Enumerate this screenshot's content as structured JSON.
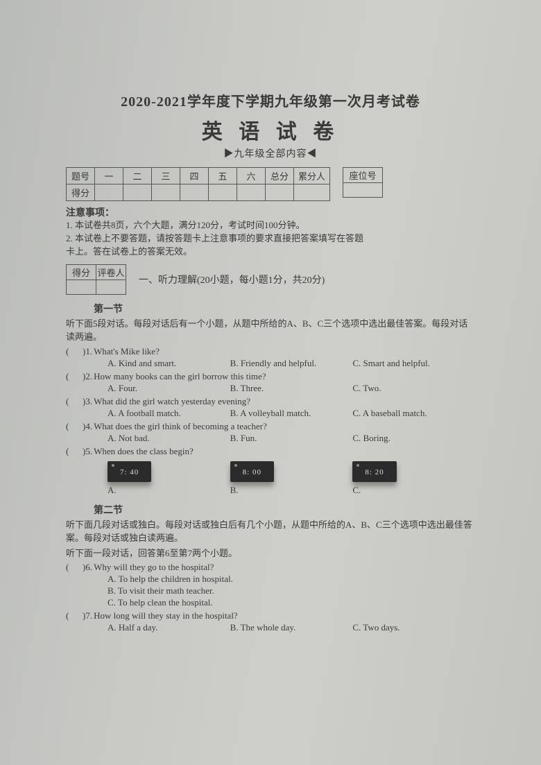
{
  "header": {
    "title_main": "2020-2021学年度下学期九年级第一次月考试卷",
    "title_sub": "英 语 试 卷",
    "scope": "▶九年级全部内容◀"
  },
  "score_table": {
    "row1": [
      "题号",
      "一",
      "二",
      "三",
      "四",
      "五",
      "六",
      "总分",
      "累分人"
    ],
    "row2_label": "得分"
  },
  "seat_table": {
    "label": "座位号"
  },
  "notice": {
    "head": "注意事项：",
    "l1": "1. 本试卷共8页，六个大题，满分120分，考试时间100分钟。",
    "l2": "2. 本试卷上不要答题，请按答题卡上注意事项的要求直接把答案填写在答题",
    "l3": "   卡上。答在试卷上的答案无效。"
  },
  "mini_table": {
    "c1": "得分",
    "c2": "评卷人"
  },
  "section1": {
    "title": "一、听力理解(20小题，每小题1分，共20分)",
    "sub1": "第一节",
    "sub1_instr": "听下面5段对话。每段对话后有一个小题，从题中所给的A、B、C三个选项中选出最佳答案。每段对话读两遍。",
    "q1": {
      "n": ")1.",
      "t": "What's Mike like?",
      "a": "A. Kind and smart.",
      "b": "B. Friendly and helpful.",
      "c": "C. Smart and helpful."
    },
    "q2": {
      "n": ")2.",
      "t": "How many books can the girl borrow this time?",
      "a": "A. Four.",
      "b": "B. Three.",
      "c": "C. Two."
    },
    "q3": {
      "n": ")3.",
      "t": "What did the girl watch yesterday evening?",
      "a": "A. A football match.",
      "b": "B. A volleyball match.",
      "c": "C. A baseball match."
    },
    "q4": {
      "n": ")4.",
      "t": "What does the girl think of becoming a teacher?",
      "a": "A. Not bad.",
      "b": "B. Fun.",
      "c": "C. Boring."
    },
    "q5": {
      "n": ")5.",
      "t": "When does the class begin?",
      "clock_a": "7: 40",
      "clock_b": "8: 00",
      "clock_c": "8: 20",
      "la": "A.",
      "lb": "B.",
      "lc": "C."
    },
    "sub2": "第二节",
    "sub2_instr1": "听下面几段对话或独白。每段对话或独白后有几个小题，从题中所给的A、B、C三个选项中选出最佳答案。每段对话或独白读两遍。",
    "sub2_instr2": "听下面一段对话，回答第6至第7两个小题。",
    "q6": {
      "n": ")6.",
      "t": "Why will they go to the hospital?",
      "a": "A. To help the children in hospital.",
      "b": "B. To visit their math teacher.",
      "c": "C. To help clean the hospital."
    },
    "q7": {
      "n": ")7.",
      "t": "How long will they stay in the hospital?",
      "a": "A. Half a day.",
      "b": "B. The whole day.",
      "c": "C. Two days."
    }
  },
  "paren": "("
}
